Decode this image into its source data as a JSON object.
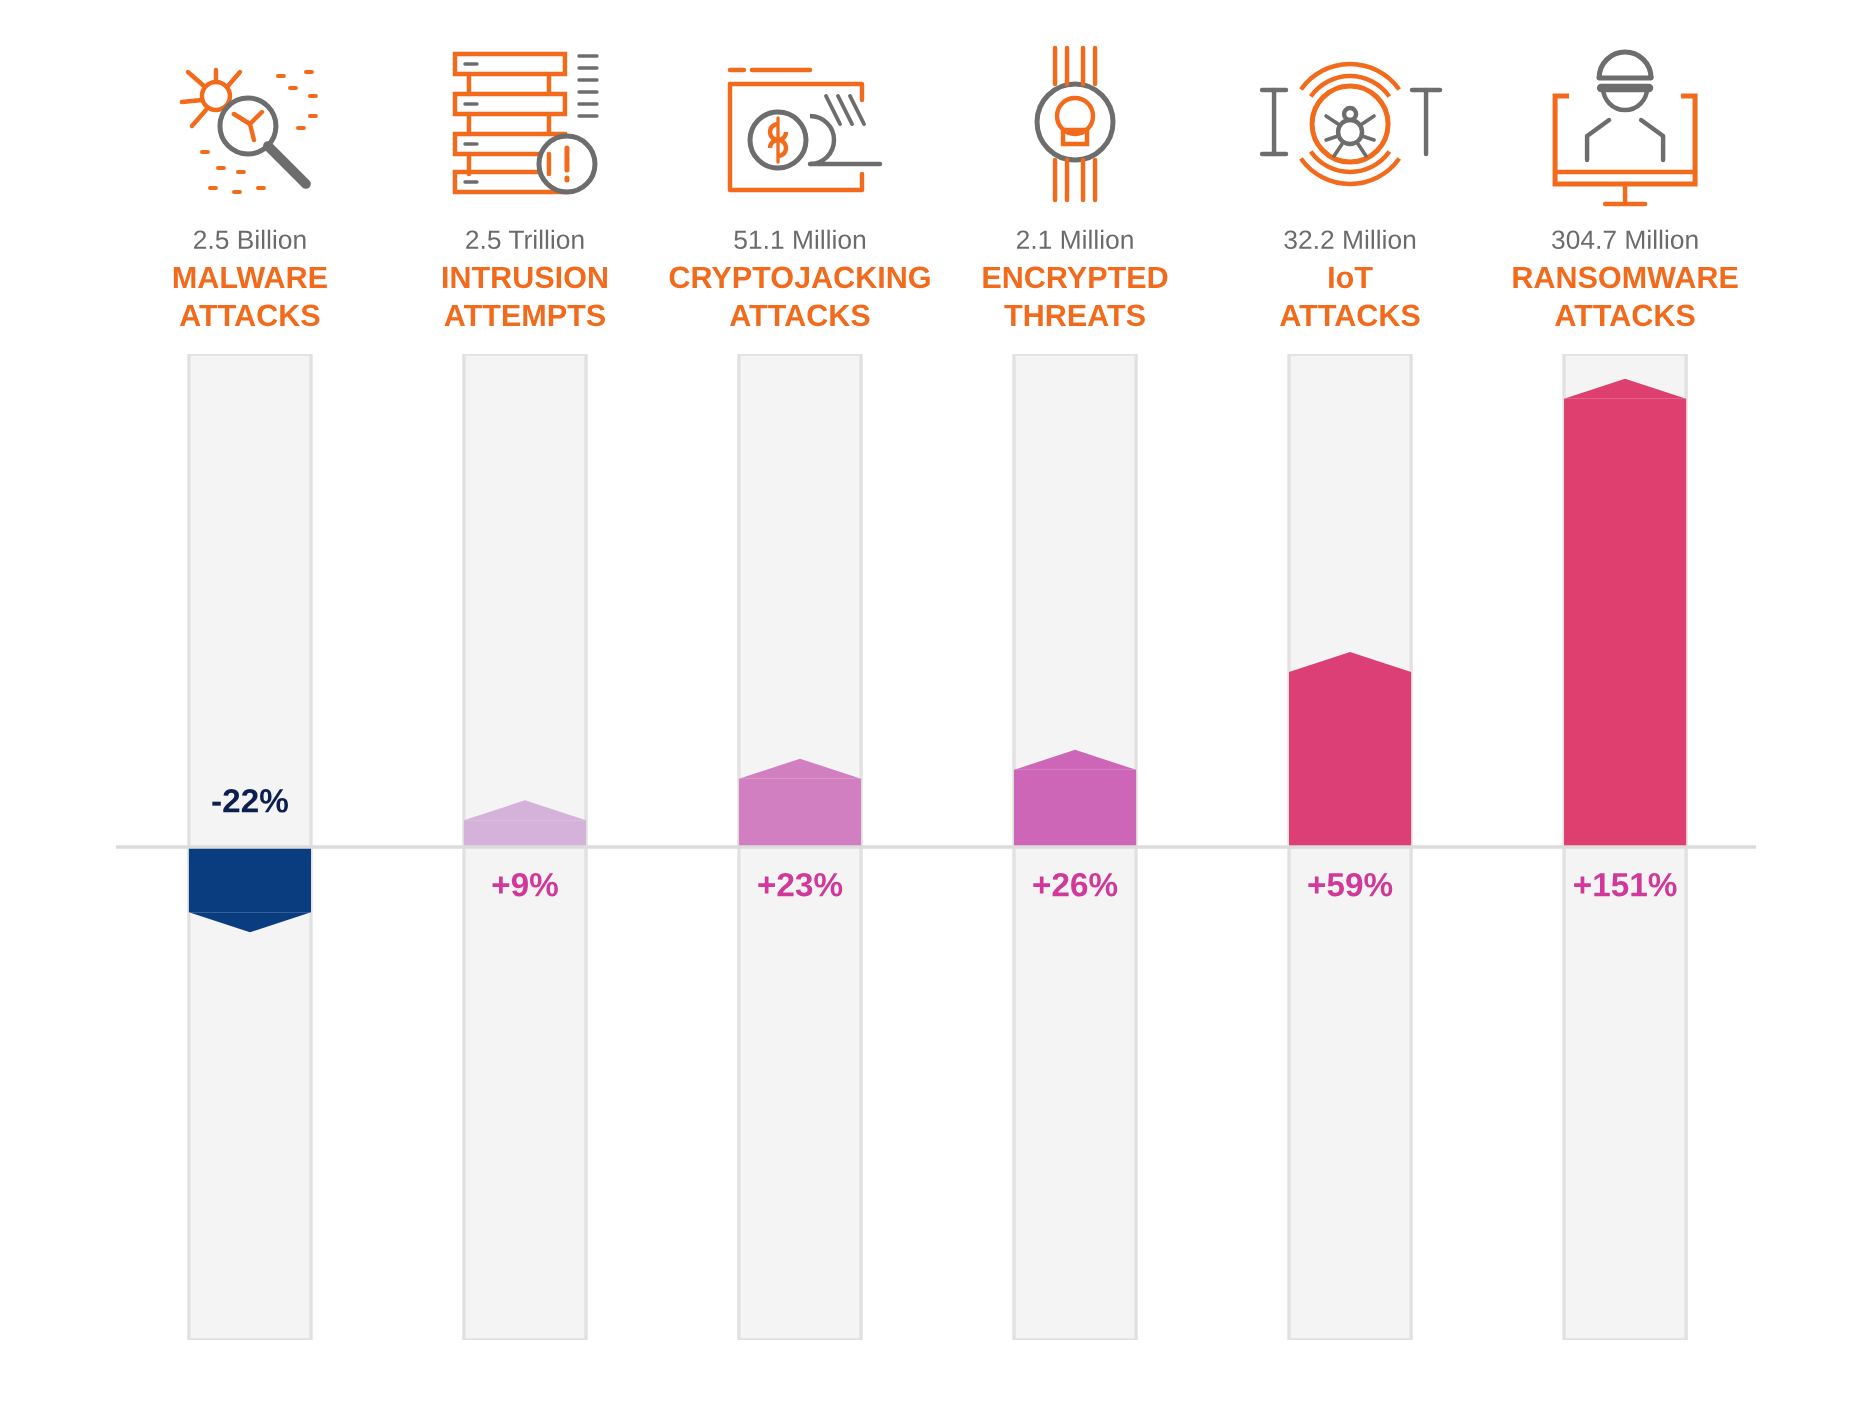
{
  "chart_data": {
    "type": "bar",
    "categories": [
      "2.5 Billion\nMALWARE\nATTACKS",
      "2.5 Trillion\nINTRUSION\nATTEMPTS",
      "51.1 Million\nCRYPTOJACKING\nATTACKS",
      "2.1 Million\nENCRYPTED\nTHREATS",
      "32.2 Million\nIoT\nATTACKS",
      "304.7 Million\nRANSOMWARE\nATTACKS"
    ],
    "values": [
      -22,
      9,
      23,
      26,
      59,
      151
    ],
    "colors": [
      "#0a3d80",
      "#d4b2d9",
      "#d17fc0",
      "#cd66b6",
      "#dc3f76",
      "#de3f6e"
    ],
    "value_labels": [
      "-22%",
      "+9%",
      "+23%",
      "+26%",
      "+59%",
      "+151%"
    ],
    "ref_lines": [
      {
        "axis": "y",
        "value": 0,
        "color": "#dcdcdc"
      }
    ]
  }
}
